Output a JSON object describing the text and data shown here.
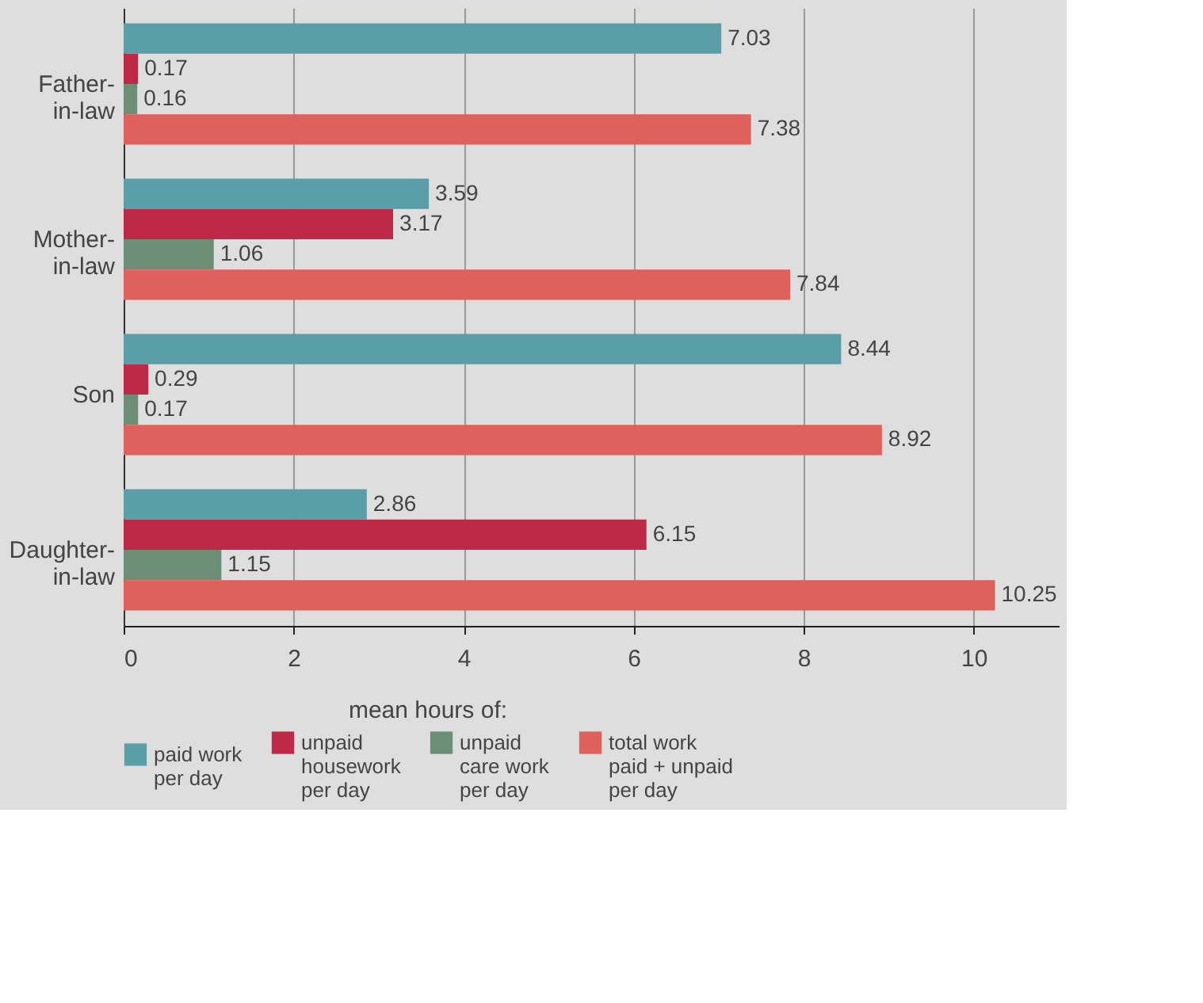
{
  "chart_data": {
    "type": "bar",
    "orientation": "horizontal",
    "legend_title": "mean hours of:",
    "categories": [
      "Father-in-law",
      "Mother-in-law",
      "Son",
      "Daughter-in-law"
    ],
    "series": [
      {
        "name": "paid work\nper day",
        "color": "#5a9ea8",
        "values": [
          7.03,
          3.59,
          8.44,
          2.86
        ]
      },
      {
        "name": "unpaid\nhousework\nper day",
        "color": "#be2947",
        "values": [
          0.17,
          3.17,
          0.29,
          6.15
        ]
      },
      {
        "name": "unpaid\ncare work\nper day",
        "color": "#6b8e74",
        "values": [
          0.16,
          1.06,
          0.17,
          1.15
        ]
      },
      {
        "name": "total work\npaid + unpaid\nper day",
        "color": "#df615e",
        "values": [
          7.38,
          7.84,
          8.92,
          10.25
        ]
      }
    ],
    "xlim": [
      0,
      11
    ],
    "xticks": [
      0,
      2,
      4,
      6,
      8,
      10
    ],
    "grid": "x",
    "data_labels": true,
    "legend": "bottom"
  }
}
